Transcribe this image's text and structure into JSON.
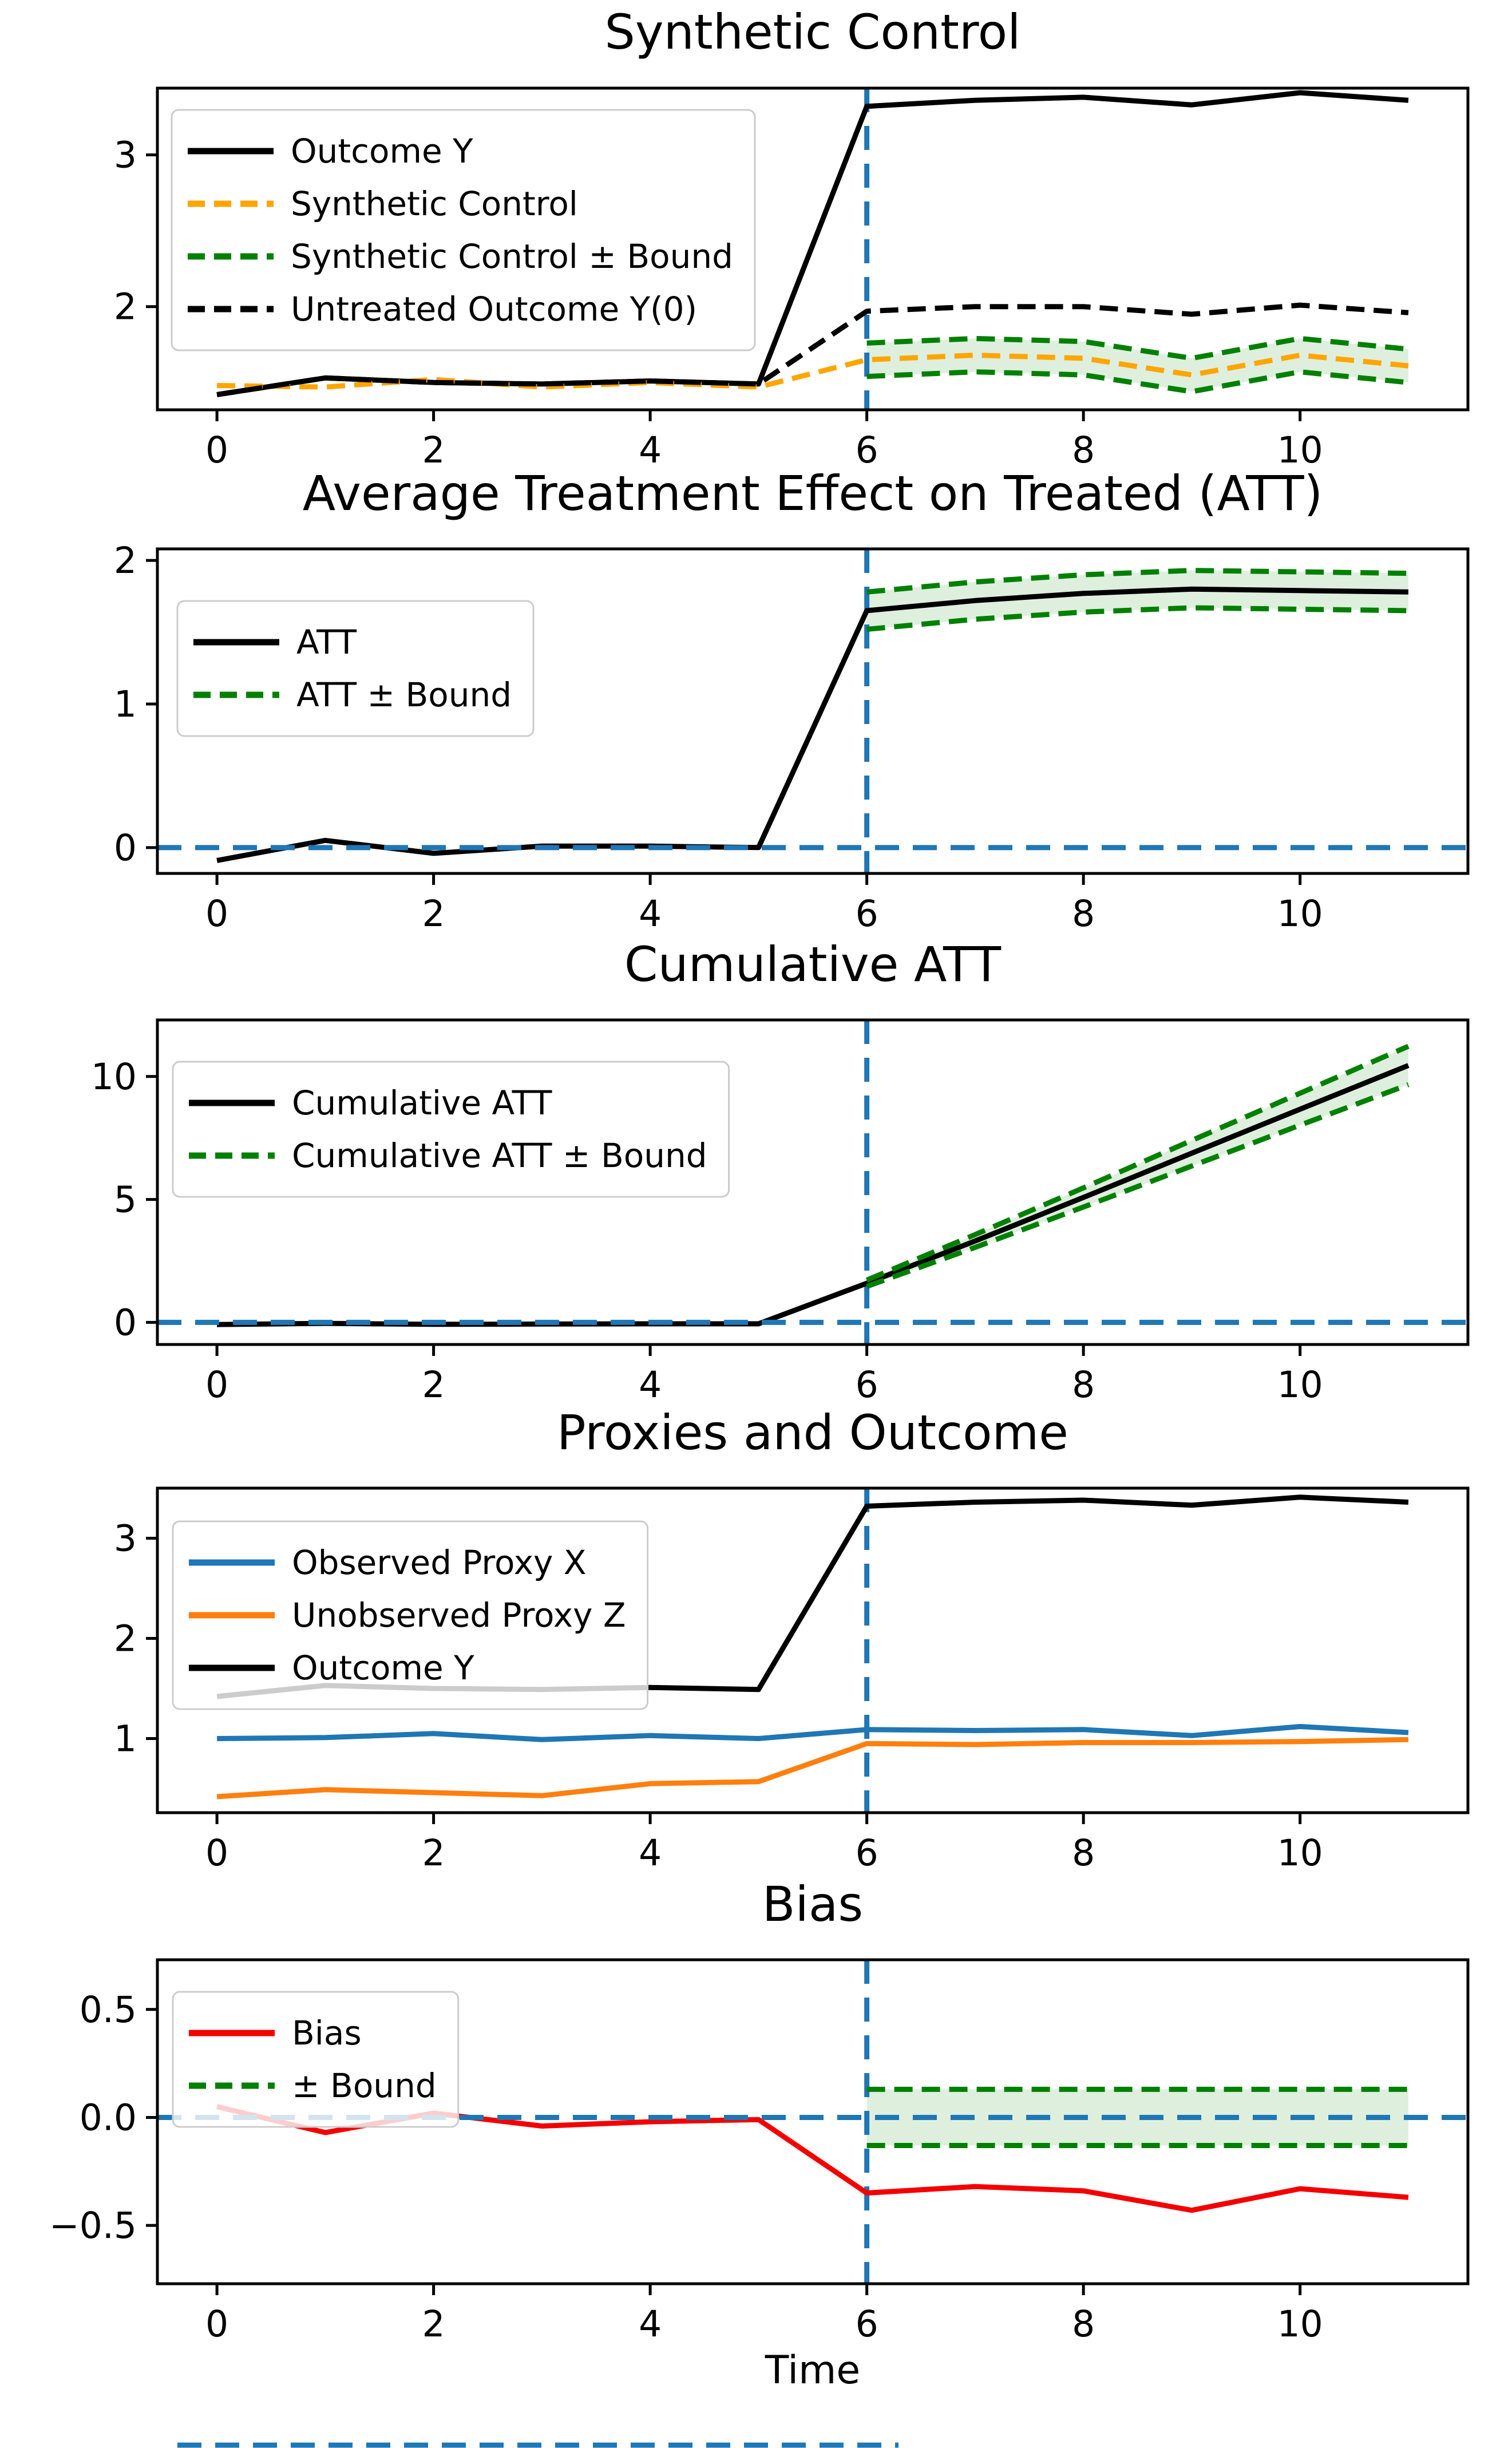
{
  "figure": {
    "background": "#ffffff",
    "treatment_time": 6
  },
  "xlabel": "Time",
  "colors": {
    "guide_blue": "#1f77b4",
    "bound_green": "#008000",
    "band_fill": "rgba(0,128,0,0.13)",
    "synthetic_orange": "#ffa500",
    "proxy_blue": "#1f77b4",
    "proxy_orange": "#ff7f0e",
    "bias_red": "#f40000",
    "line_black": "#000000"
  },
  "chart_data": [
    {
      "type": "line",
      "title": "Synthetic Control",
      "xlim": [
        -0.55,
        11.55
      ],
      "ylim": [
        1.32,
        3.44
      ],
      "xticks": [
        0,
        2,
        4,
        6,
        8,
        10
      ],
      "yticks": [
        {
          "v": 2,
          "label": "2"
        },
        {
          "v": 3,
          "label": "3"
        }
      ],
      "vline": {
        "x": 6,
        "color": "#1f77b4"
      },
      "band": {
        "x": [
          6,
          7,
          8,
          9,
          10,
          11
        ],
        "upper": [
          1.76,
          1.79,
          1.77,
          1.66,
          1.79,
          1.72
        ],
        "lower": [
          1.54,
          1.57,
          1.55,
          1.44,
          1.57,
          1.5
        ],
        "fill": "rgba(0,128,0,0.13)"
      },
      "series": [
        {
          "name": "Outcome Y",
          "color": "#000000",
          "dash": false,
          "x": [
            0,
            1,
            2,
            3,
            4,
            5,
            6,
            7,
            8,
            9,
            10,
            11
          ],
          "y": [
            1.42,
            1.53,
            1.5,
            1.49,
            1.51,
            1.49,
            3.32,
            3.36,
            3.38,
            3.33,
            3.41,
            3.36
          ]
        },
        {
          "name": "Synthetic Control",
          "color": "#ffa500",
          "dash": true,
          "x": [
            0,
            1,
            2,
            3,
            4,
            5,
            6,
            7,
            8,
            9,
            10,
            11
          ],
          "y": [
            1.48,
            1.47,
            1.52,
            1.47,
            1.5,
            1.47,
            1.65,
            1.68,
            1.66,
            1.55,
            1.68,
            1.61
          ]
        },
        {
          "name": "Synthetic Control upper bound",
          "color": "#008000",
          "dash": true,
          "x": [
            6,
            7,
            8,
            9,
            10,
            11
          ],
          "y": [
            1.76,
            1.79,
            1.77,
            1.66,
            1.79,
            1.72
          ]
        },
        {
          "name": "Synthetic Control lower bound",
          "color": "#008000",
          "dash": true,
          "x": [
            6,
            7,
            8,
            9,
            10,
            11
          ],
          "y": [
            1.54,
            1.57,
            1.55,
            1.44,
            1.57,
            1.5
          ]
        },
        {
          "name": "Untreated Outcome Y(0)",
          "color": "#000000",
          "dash": true,
          "x": [
            0,
            1,
            2,
            3,
            4,
            5,
            6,
            7,
            8,
            9,
            10,
            11
          ],
          "y": [
            1.42,
            1.53,
            1.5,
            1.49,
            1.51,
            1.49,
            1.97,
            2.0,
            2.0,
            1.95,
            2.01,
            1.96
          ]
        }
      ],
      "legend": [
        {
          "label": "Outcome Y",
          "color": "#000000",
          "dash": false
        },
        {
          "label": "Synthetic Control",
          "color": "#ffa500",
          "dash": true
        },
        {
          "label": "Synthetic Control ± Bound",
          "color": "#008000",
          "dash": true
        },
        {
          "label": "Untreated Outcome Y(0)",
          "color": "#000000",
          "dash": true
        }
      ]
    },
    {
      "type": "line",
      "title": "Average Treatment Effect on Treated (ATT)",
      "xlim": [
        -0.55,
        11.55
      ],
      "ylim": [
        -0.18,
        2.08
      ],
      "xticks": [
        0,
        2,
        4,
        6,
        8,
        10
      ],
      "yticks": [
        {
          "v": 0,
          "label": "0"
        },
        {
          "v": 1,
          "label": "1"
        },
        {
          "v": 2,
          "label": "2"
        }
      ],
      "vline": {
        "x": 6,
        "color": "#1f77b4"
      },
      "hline": {
        "y": 0,
        "color": "#1f77b4"
      },
      "band": {
        "x": [
          6,
          7,
          8,
          9,
          10,
          11
        ],
        "upper": [
          1.78,
          1.85,
          1.9,
          1.93,
          1.92,
          1.91
        ],
        "lower": [
          1.52,
          1.59,
          1.64,
          1.67,
          1.66,
          1.65
        ],
        "fill": "rgba(0,128,0,0.13)"
      },
      "series": [
        {
          "name": "ATT",
          "color": "#000000",
          "dash": false,
          "x": [
            0,
            1,
            2,
            3,
            4,
            5,
            6,
            7,
            8,
            9,
            10,
            11
          ],
          "y": [
            -0.09,
            0.05,
            -0.04,
            0.01,
            0.01,
            0.0,
            1.65,
            1.72,
            1.77,
            1.8,
            1.79,
            1.78
          ]
        },
        {
          "name": "ATT upper bound",
          "color": "#008000",
          "dash": true,
          "x": [
            6,
            7,
            8,
            9,
            10,
            11
          ],
          "y": [
            1.78,
            1.85,
            1.9,
            1.93,
            1.92,
            1.91
          ]
        },
        {
          "name": "ATT lower bound",
          "color": "#008000",
          "dash": true,
          "x": [
            6,
            7,
            8,
            9,
            10,
            11
          ],
          "y": [
            1.52,
            1.59,
            1.64,
            1.67,
            1.66,
            1.65
          ]
        }
      ],
      "legend": [
        {
          "label": "ATT",
          "color": "#000000",
          "dash": false
        },
        {
          "label": "ATT ± Bound",
          "color": "#008000",
          "dash": true
        }
      ]
    },
    {
      "type": "line",
      "title": "Cumulative ATT",
      "xlim": [
        -0.55,
        11.55
      ],
      "ylim": [
        -0.9,
        12.3
      ],
      "xticks": [
        0,
        2,
        4,
        6,
        8,
        10
      ],
      "yticks": [
        {
          "v": 0,
          "label": "0"
        },
        {
          "v": 5,
          "label": "5"
        },
        {
          "v": 10,
          "label": "10"
        }
      ],
      "vline": {
        "x": 6,
        "color": "#1f77b4"
      },
      "hline": {
        "y": 0,
        "color": "#1f77b4"
      },
      "band": {
        "x": [
          6,
          7,
          8,
          9,
          10,
          11
        ],
        "upper": [
          1.72,
          3.57,
          5.47,
          7.4,
          9.32,
          11.23
        ],
        "lower": [
          1.46,
          3.05,
          4.69,
          6.36,
          8.02,
          9.67
        ],
        "fill": "rgba(0,128,0,0.13)"
      },
      "series": [
        {
          "name": "Cumulative ATT",
          "color": "#000000",
          "dash": false,
          "x": [
            0,
            1,
            2,
            3,
            4,
            5,
            6,
            7,
            8,
            9,
            10,
            11
          ],
          "y": [
            -0.09,
            -0.04,
            -0.08,
            -0.07,
            -0.06,
            -0.06,
            1.59,
            3.31,
            5.08,
            6.88,
            8.67,
            10.45
          ]
        },
        {
          "name": "Cumulative ATT upper bound",
          "color": "#008000",
          "dash": true,
          "x": [
            6,
            7,
            8,
            9,
            10,
            11
          ],
          "y": [
            1.72,
            3.57,
            5.47,
            7.4,
            9.32,
            11.23
          ]
        },
        {
          "name": "Cumulative ATT lower bound",
          "color": "#008000",
          "dash": true,
          "x": [
            6,
            7,
            8,
            9,
            10,
            11
          ],
          "y": [
            1.46,
            3.05,
            4.69,
            6.36,
            8.02,
            9.67
          ]
        }
      ],
      "legend": [
        {
          "label": "Cumulative ATT",
          "color": "#000000",
          "dash": false
        },
        {
          "label": "Cumulative ATT ± Bound",
          "color": "#008000",
          "dash": true
        }
      ]
    },
    {
      "type": "line",
      "title": "Proxies and Outcome",
      "xlim": [
        -0.55,
        11.55
      ],
      "ylim": [
        0.26,
        3.5
      ],
      "xticks": [
        0,
        2,
        4,
        6,
        8,
        10
      ],
      "yticks": [
        {
          "v": 1,
          "label": "1"
        },
        {
          "v": 2,
          "label": "2"
        },
        {
          "v": 3,
          "label": "3"
        }
      ],
      "vline": {
        "x": 6,
        "color": "#1f77b4"
      },
      "series": [
        {
          "name": "Observed Proxy X",
          "color": "#1f77b4",
          "dash": false,
          "x": [
            0,
            1,
            2,
            3,
            4,
            5,
            6,
            7,
            8,
            9,
            10,
            11
          ],
          "y": [
            1.0,
            1.01,
            1.05,
            0.99,
            1.03,
            1.0,
            1.09,
            1.08,
            1.09,
            1.03,
            1.12,
            1.06
          ]
        },
        {
          "name": "Unobserved Proxy Z",
          "color": "#ff7f0e",
          "dash": false,
          "x": [
            0,
            1,
            2,
            3,
            4,
            5,
            6,
            7,
            8,
            9,
            10,
            11
          ],
          "y": [
            0.42,
            0.49,
            0.46,
            0.43,
            0.55,
            0.57,
            0.95,
            0.94,
            0.96,
            0.96,
            0.97,
            0.99
          ]
        },
        {
          "name": "Outcome Y",
          "color": "#000000",
          "dash": false,
          "x": [
            0,
            1,
            2,
            3,
            4,
            5,
            6,
            7,
            8,
            9,
            10,
            11
          ],
          "y": [
            1.42,
            1.53,
            1.5,
            1.49,
            1.51,
            1.49,
            3.32,
            3.36,
            3.38,
            3.33,
            3.41,
            3.36
          ]
        }
      ],
      "legend": [
        {
          "label": "Observed Proxy X",
          "color": "#1f77b4",
          "dash": false
        },
        {
          "label": "Unobserved Proxy Z",
          "color": "#ff7f0e",
          "dash": false
        },
        {
          "label": "Outcome Y",
          "color": "#000000",
          "dash": false
        }
      ]
    },
    {
      "type": "line",
      "title": "Bias",
      "xlim": [
        -0.55,
        11.55
      ],
      "ylim": [
        -0.77,
        0.73
      ],
      "xticks": [
        0,
        2,
        4,
        6,
        8,
        10
      ],
      "yticks": [
        {
          "v": 0.5,
          "label": "0.5"
        },
        {
          "v": 0,
          "label": "0.0"
        },
        {
          "v": -0.5,
          "label": "−0.5"
        }
      ],
      "vline": {
        "x": 6,
        "color": "#1f77b4"
      },
      "hline": {
        "y": 0,
        "color": "#1f77b4"
      },
      "band": {
        "x": [
          6,
          7,
          8,
          9,
          10,
          11
        ],
        "upper": [
          0.13,
          0.13,
          0.13,
          0.13,
          0.13,
          0.13
        ],
        "lower": [
          -0.13,
          -0.13,
          -0.13,
          -0.13,
          -0.13,
          -0.13
        ],
        "fill": "rgba(0,128,0,0.13)"
      },
      "series": [
        {
          "name": "Bias",
          "color": "#f40000",
          "dash": false,
          "x": [
            0,
            1,
            2,
            3,
            4,
            5,
            6,
            7,
            8,
            9,
            10,
            11
          ],
          "y": [
            0.05,
            -0.07,
            0.02,
            -0.04,
            -0.02,
            -0.01,
            -0.35,
            -0.32,
            -0.34,
            -0.43,
            -0.33,
            -0.37
          ]
        },
        {
          "name": "Bias upper bound",
          "color": "#008000",
          "dash": true,
          "x": [
            6,
            7,
            8,
            9,
            10,
            11
          ],
          "y": [
            0.13,
            0.13,
            0.13,
            0.13,
            0.13,
            0.13
          ]
        },
        {
          "name": "Bias lower bound",
          "color": "#008000",
          "dash": true,
          "x": [
            6,
            7,
            8,
            9,
            10,
            11
          ],
          "y": [
            -0.13,
            -0.13,
            -0.13,
            -0.13,
            -0.13,
            -0.13
          ]
        }
      ],
      "legend": [
        {
          "label": "Bias",
          "color": "#f40000",
          "dash": false
        },
        {
          "label": "± Bound",
          "color": "#008000",
          "dash": true
        }
      ]
    }
  ]
}
